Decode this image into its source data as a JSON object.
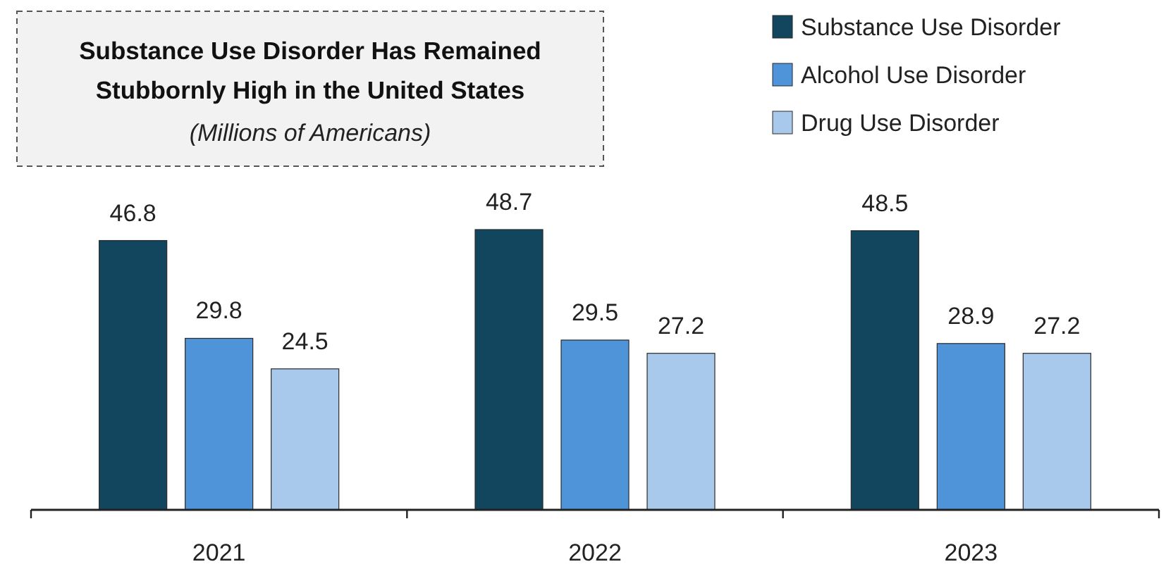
{
  "chart_data": {
    "type": "bar",
    "title": "Substance Use Disorder Has Remained Stubbornly High in the United States",
    "subtitle": "(Millions of Americans)",
    "categories": [
      "2021",
      "2022",
      "2023"
    ],
    "series": [
      {
        "name": "Substance Use Disorder",
        "color": "#12455e",
        "values": [
          46.8,
          48.7,
          48.5
        ]
      },
      {
        "name": "Alcohol Use Disorder",
        "color": "#4f93d8",
        "values": [
          29.8,
          29.5,
          28.9
        ]
      },
      {
        "name": "Drug Use Disorder",
        "color": "#a9c9ec",
        "values": [
          24.5,
          27.2,
          27.2
        ]
      }
    ],
    "data_labels": true,
    "legend": "top right",
    "grid": false
  }
}
